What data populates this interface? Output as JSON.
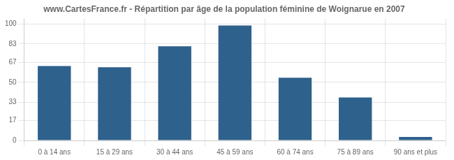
{
  "chart_data": {
    "type": "bar",
    "title": "www.CartesFrance.fr - Répartition par âge de la population féminine de Woignarue en 2007",
    "categories": [
      "0 à 14 ans",
      "15 à 29 ans",
      "30 à 44 ans",
      "45 à 59 ans",
      "60 à 74 ans",
      "75 à 89 ans",
      "90 ans et plus"
    ],
    "values": [
      64,
      63,
      81,
      99,
      54,
      37,
      3
    ],
    "color": "#2e618c",
    "ylim": [
      0,
      105
    ],
    "yticks": [
      0,
      17,
      33,
      50,
      67,
      83,
      100
    ],
    "grid": true
  }
}
